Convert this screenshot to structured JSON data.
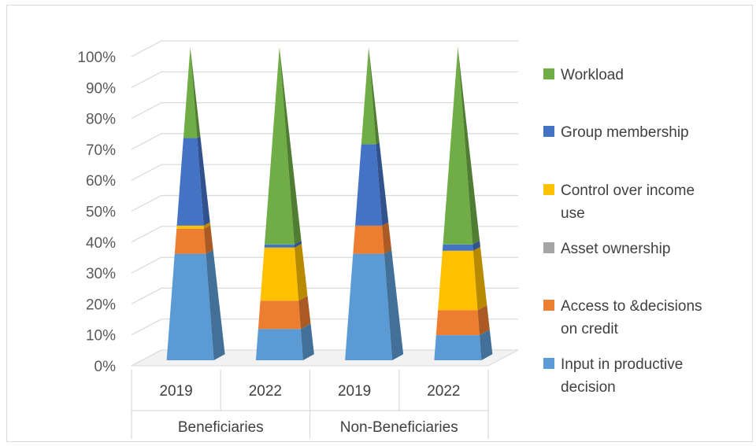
{
  "chart_data": {
    "type": "bar",
    "subtype": "stacked-100-pyramid-3d",
    "title": "",
    "xlabel": "",
    "ylabel": "",
    "ylim": [
      0,
      100
    ],
    "yticks": [
      "0%",
      "10%",
      "20%",
      "30%",
      "40%",
      "50%",
      "60%",
      "70%",
      "80%",
      "90%",
      "100%"
    ],
    "groups": [
      "Beneficiaries",
      "Non-Beneficiaries"
    ],
    "categories": [
      "2019",
      "2022",
      "2019",
      "2022"
    ],
    "category_group": [
      0,
      0,
      1,
      1
    ],
    "grid": true,
    "legend_position": "right",
    "series": [
      {
        "name": "Input in productive decision",
        "color": "#5B9BD5",
        "values": [
          34,
          10,
          34,
          8
        ]
      },
      {
        "name": "Access to &decisions on credit",
        "color": "#ED7D31",
        "values": [
          8,
          9,
          9,
          8
        ]
      },
      {
        "name": "Asset ownership",
        "color": "#A5A5A5",
        "values": [
          0,
          0,
          0,
          0
        ]
      },
      {
        "name": "Control over income use",
        "color": "#FFC000",
        "values": [
          1,
          17,
          0,
          19
        ]
      },
      {
        "name": "Group membership",
        "color": "#4472C4",
        "values": [
          28,
          1,
          26,
          2
        ]
      },
      {
        "name": "Workload",
        "color": "#70AD47",
        "values": [
          29,
          63,
          31,
          63
        ]
      }
    ]
  }
}
